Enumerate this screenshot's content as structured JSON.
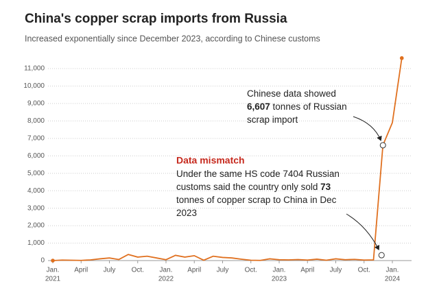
{
  "chart_data": {
    "type": "line",
    "title": "China's copper scrap imports from Russia",
    "subtitle": "Increased exponentially since  December 2023, according to Chinese customs",
    "categories": [
      "Jan.",
      null,
      null,
      "April",
      null,
      null,
      "July",
      null,
      null,
      "Oct.",
      null,
      null,
      "Jan.",
      null,
      null,
      "April",
      null,
      null,
      "July",
      null,
      null,
      "Oct.",
      null,
      null,
      "Jan.",
      null,
      null,
      "April",
      null,
      null,
      "July",
      null,
      null,
      "Oct.",
      null,
      null,
      "Jan.",
      null
    ],
    "years": [
      "2021",
      "2022",
      "2023",
      "2024"
    ],
    "series": [
      {
        "name": "Copper scrap imports",
        "color": "#e0701f",
        "values": [
          0,
          30,
          20,
          10,
          40,
          100,
          150,
          60,
          350,
          200,
          250,
          150,
          50,
          300,
          200,
          280,
          20,
          250,
          180,
          150,
          80,
          20,
          10,
          100,
          50,
          40,
          60,
          30,
          80,
          20,
          100,
          50,
          70,
          30,
          40,
          6607,
          7900,
          11600
        ]
      }
    ],
    "ylim": [
      0,
      11000
    ],
    "yticks": [
      0,
      {
        "value": 1000,
        "label": "1,000"
      },
      {
        "value": 2000,
        "label": "2,000"
      },
      {
        "value": 3000,
        "label": "3,000"
      },
      {
        "value": 4000,
        "label": "4,000"
      },
      {
        "value": 5000,
        "label": "5,000"
      },
      {
        "value": 6000,
        "label": "6,000"
      },
      {
        "value": 7000,
        "label": "7,000"
      },
      {
        "value": 8000,
        "label": "8,000"
      },
      {
        "value": 9000,
        "label": "9,000"
      },
      {
        "value": 10000,
        "label": "10,000"
      },
      {
        "value": 11000,
        "label": "11,000"
      }
    ],
    "grid": true,
    "annotations": [
      {
        "lines": [
          [
            {
              "text": "Chinese data showed"
            }
          ],
          [
            {
              "text": "6,607",
              "bold": true
            },
            {
              "text": " tonnes of Russian"
            }
          ],
          [
            {
              "text": "scrap import"
            }
          ]
        ]
      },
      {
        "heading": "Data mismatch",
        "value": 73,
        "lines": [
          [
            {
              "text": "Under the same HS code 7404 Russian"
            }
          ],
          [
            {
              "text": "customs said the country only sold "
            },
            {
              "text": "73",
              "bold": true
            }
          ],
          [
            {
              "text": "tonnes of copper scrap to China in Dec"
            }
          ],
          [
            {
              "text": "2023"
            }
          ]
        ]
      }
    ]
  }
}
